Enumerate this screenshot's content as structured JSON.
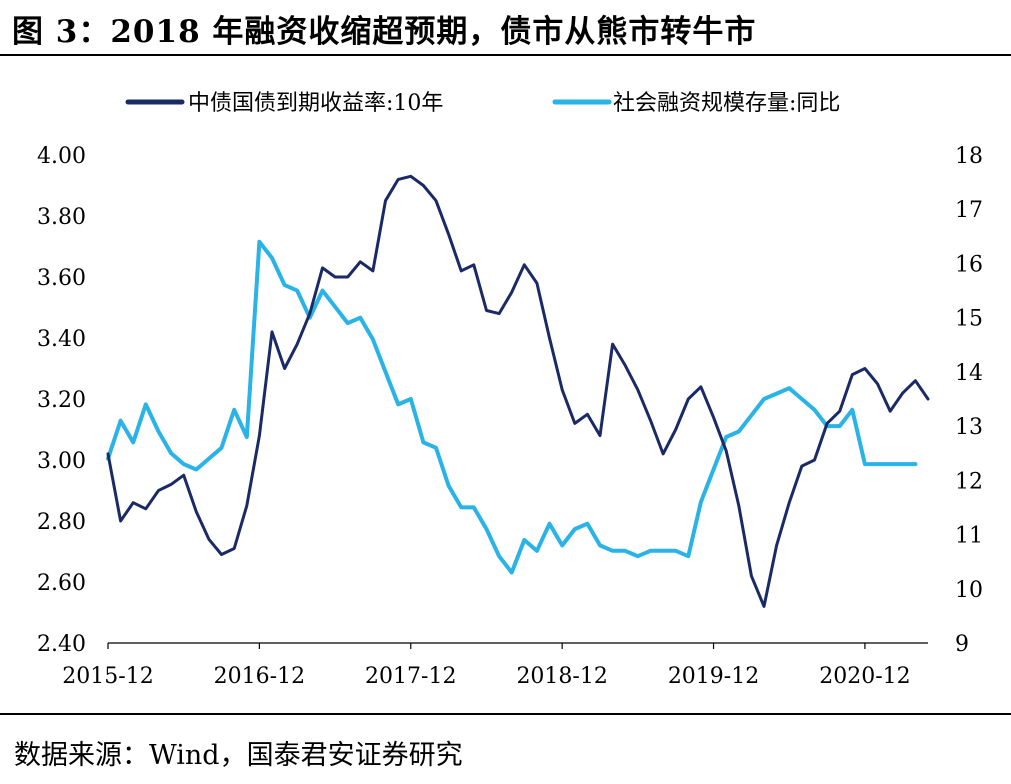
{
  "header": {
    "title": "图 3：2018 年融资收缩超预期，债市从熊市转牛市"
  },
  "footer": {
    "source": "数据来源：Wind，国泰君安证券研究"
  },
  "colors": {
    "bond_yield": "#1a2a66",
    "tsf_growth": "#29b3e6"
  },
  "chart_data": {
    "type": "line",
    "title": "图 3：2018 年融资收缩超预期，债市从熊市转牛市",
    "legend_position": "top",
    "grid": false,
    "x_ticks": [
      "2015-12",
      "2016-12",
      "2017-12",
      "2018-12",
      "2019-12",
      "2020-12"
    ],
    "y_left": {
      "range": [
        2.4,
        4.0
      ],
      "ticks": [
        "2.40",
        "2.60",
        "2.80",
        "3.00",
        "3.20",
        "3.40",
        "3.60",
        "3.80",
        "4.00"
      ]
    },
    "y_right": {
      "range": [
        9,
        18
      ],
      "ticks": [
        "9",
        "10",
        "11",
        "12",
        "13",
        "14",
        "15",
        "16",
        "17",
        "18"
      ]
    },
    "series": [
      {
        "name": "中债国债到期收益率:10年",
        "axis": "left",
        "x": [
          "2015-12",
          "2016-01",
          "2016-02",
          "2016-03",
          "2016-04",
          "2016-05",
          "2016-06",
          "2016-07",
          "2016-08",
          "2016-09",
          "2016-10",
          "2016-11",
          "2016-12",
          "2017-01",
          "2017-02",
          "2017-03",
          "2017-04",
          "2017-05",
          "2017-06",
          "2017-07",
          "2017-08",
          "2017-09",
          "2017-10",
          "2017-11",
          "2017-12",
          "2018-01",
          "2018-02",
          "2018-03",
          "2018-04",
          "2018-05",
          "2018-06",
          "2018-07",
          "2018-08",
          "2018-09",
          "2018-10",
          "2018-11",
          "2018-12",
          "2019-01",
          "2019-02",
          "2019-03",
          "2019-04",
          "2019-05",
          "2019-06",
          "2019-07",
          "2019-08",
          "2019-09",
          "2019-10",
          "2019-11",
          "2019-12",
          "2020-01",
          "2020-02",
          "2020-03",
          "2020-04",
          "2020-05",
          "2020-06",
          "2020-07",
          "2020-08",
          "2020-09",
          "2020-10",
          "2020-11",
          "2020-12",
          "2021-01",
          "2021-02",
          "2021-03",
          "2021-04",
          "2021-05"
        ],
        "values": [
          3.02,
          2.8,
          2.86,
          2.84,
          2.9,
          2.92,
          2.95,
          2.83,
          2.74,
          2.69,
          2.71,
          2.85,
          3.08,
          3.42,
          3.3,
          3.38,
          3.48,
          3.63,
          3.6,
          3.6,
          3.65,
          3.62,
          3.85,
          3.92,
          3.93,
          3.9,
          3.85,
          3.74,
          3.62,
          3.64,
          3.49,
          3.48,
          3.55,
          3.64,
          3.58,
          3.4,
          3.23,
          3.12,
          3.15,
          3.08,
          3.38,
          3.31,
          3.23,
          3.13,
          3.02,
          3.1,
          3.2,
          3.24,
          3.14,
          3.03,
          2.85,
          2.62,
          2.52,
          2.72,
          2.86,
          2.98,
          3.0,
          3.12,
          3.16,
          3.28,
          3.3,
          3.25,
          3.16,
          3.22,
          3.26,
          3.2
        ]
      },
      {
        "name": "社会融资规模存量:同比",
        "axis": "right",
        "x": [
          "2015-12",
          "2016-01",
          "2016-02",
          "2016-03",
          "2016-04",
          "2016-05",
          "2016-06",
          "2016-07",
          "2016-08",
          "2016-09",
          "2016-10",
          "2016-11",
          "2016-12",
          "2017-01",
          "2017-02",
          "2017-03",
          "2017-04",
          "2017-05",
          "2017-06",
          "2017-07",
          "2017-08",
          "2017-09",
          "2017-10",
          "2017-11",
          "2017-12",
          "2018-01",
          "2018-02",
          "2018-03",
          "2018-04",
          "2018-05",
          "2018-06",
          "2018-07",
          "2018-08",
          "2018-09",
          "2018-10",
          "2018-11",
          "2018-12",
          "2019-01",
          "2019-02",
          "2019-03",
          "2019-04",
          "2019-05",
          "2019-06",
          "2019-07",
          "2019-08",
          "2019-09",
          "2019-10",
          "2019-11",
          "2019-12",
          "2020-01",
          "2020-02",
          "2020-03",
          "2020-04",
          "2020-05",
          "2020-06",
          "2020-07",
          "2020-08",
          "2020-09",
          "2020-10",
          "2020-11",
          "2020-12",
          "2021-01",
          "2021-02",
          "2021-03",
          "2021-04"
        ],
        "values": [
          12.4,
          13.1,
          12.7,
          13.4,
          12.9,
          12.5,
          12.3,
          12.2,
          12.4,
          12.6,
          13.3,
          12.8,
          16.4,
          16.1,
          15.6,
          15.5,
          15.0,
          15.5,
          15.2,
          14.9,
          15.0,
          14.6,
          14.0,
          13.4,
          13.5,
          12.7,
          12.6,
          11.9,
          11.5,
          11.5,
          11.1,
          10.6,
          10.3,
          10.9,
          10.7,
          11.2,
          10.8,
          11.1,
          11.2,
          10.8,
          10.7,
          10.7,
          10.6,
          10.7,
          10.7,
          10.7,
          10.6,
          11.6,
          12.2,
          12.8,
          12.9,
          13.2,
          13.5,
          13.6,
          13.7,
          13.5,
          13.3,
          13.0,
          13.0,
          13.3,
          12.3,
          12.3,
          12.3,
          12.3,
          12.3
        ]
      }
    ]
  }
}
